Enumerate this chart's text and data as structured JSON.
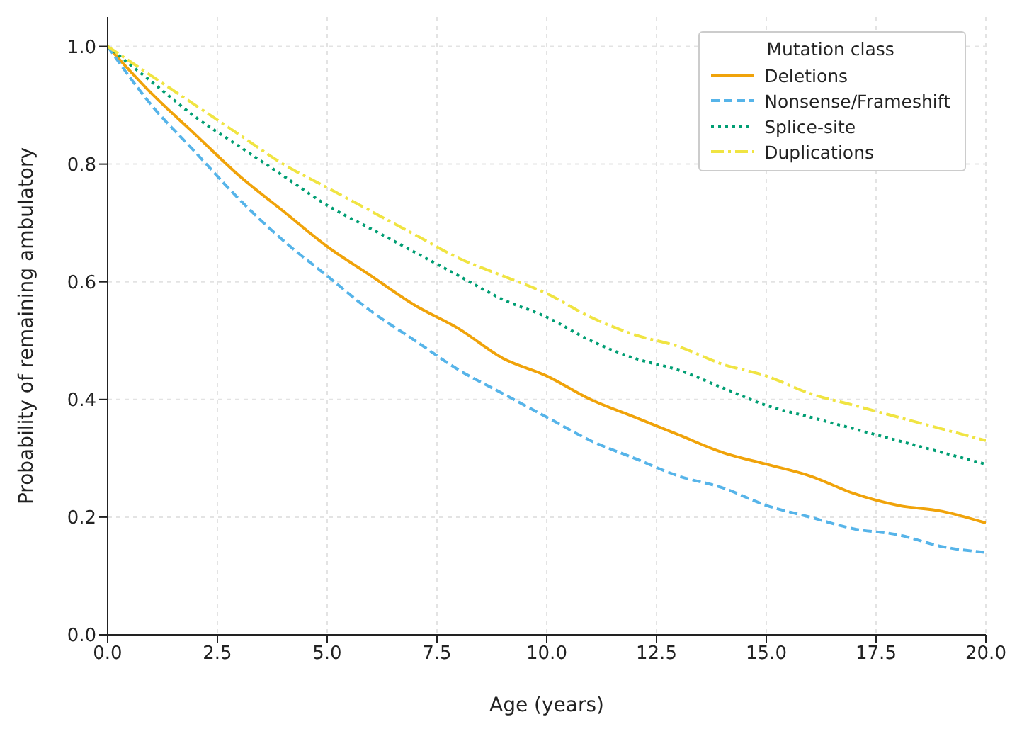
{
  "chart_data": {
    "type": "line",
    "xlabel": "Age (years)",
    "ylabel": "Probability of remaining ambulatory",
    "legend_title": "Mutation class",
    "legend": "top right",
    "grid": true,
    "marker": "none",
    "x": [
      0,
      1,
      2,
      3,
      4,
      5,
      6,
      7,
      8,
      9,
      10,
      11,
      12,
      13,
      14,
      15,
      16,
      17,
      18,
      19,
      20
    ],
    "xlim": [
      0,
      20
    ],
    "xticks": [
      {
        "value": 0,
        "label": "0.0"
      },
      {
        "value": 2.5,
        "label": "2.5"
      },
      {
        "value": 5,
        "label": "5.0"
      },
      {
        "value": 7.5,
        "label": "7.5"
      },
      {
        "value": 10,
        "label": "10.0"
      },
      {
        "value": 12.5,
        "label": "12.5"
      },
      {
        "value": 15,
        "label": "15.0"
      },
      {
        "value": 17.5,
        "label": "17.5"
      },
      {
        "value": 20,
        "label": "20.0"
      }
    ],
    "ylim": [
      0,
      1.05
    ],
    "yticks": [
      {
        "value": 0,
        "label": "0.0"
      },
      0.2,
      0.4,
      0.6,
      0.8,
      {
        "value": 1,
        "label": "1.0"
      }
    ],
    "series": [
      {
        "name": "Deletions",
        "color": "#f0a30a",
        "line_style": "solid",
        "values": [
          1,
          0.92,
          0.85,
          0.78,
          0.72,
          0.66,
          0.61,
          0.56,
          0.52,
          0.47,
          0.44,
          0.4,
          0.37,
          0.34,
          0.31,
          0.29,
          0.27,
          0.24,
          0.22,
          0.21,
          0.19
        ]
      },
      {
        "name": "Nonsense/Frameshift",
        "color": "#56b4e9",
        "line_style": "dashed",
        "values": [
          1,
          0.9,
          0.82,
          0.74,
          0.67,
          0.61,
          0.55,
          0.5,
          0.45,
          0.41,
          0.37,
          0.33,
          0.3,
          0.27,
          0.25,
          0.22,
          0.2,
          0.18,
          0.17,
          0.15,
          0.14
        ]
      },
      {
        "name": "Splice-site",
        "color": "#009e73",
        "line_style": "dotted",
        "values": [
          1,
          0.94,
          0.88,
          0.83,
          0.78,
          0.73,
          0.69,
          0.65,
          0.61,
          0.57,
          0.54,
          0.5,
          0.47,
          0.45,
          0.42,
          0.39,
          0.37,
          0.35,
          0.33,
          0.31,
          0.29
        ]
      },
      {
        "name": "Duplications",
        "color": "#f0e442",
        "line_style": "dashdot",
        "values": [
          1,
          0.95,
          0.9,
          0.85,
          0.8,
          0.76,
          0.72,
          0.68,
          0.64,
          0.61,
          0.58,
          0.54,
          0.51,
          0.49,
          0.46,
          0.44,
          0.41,
          0.39,
          0.37,
          0.35,
          0.33
        ]
      }
    ]
  }
}
